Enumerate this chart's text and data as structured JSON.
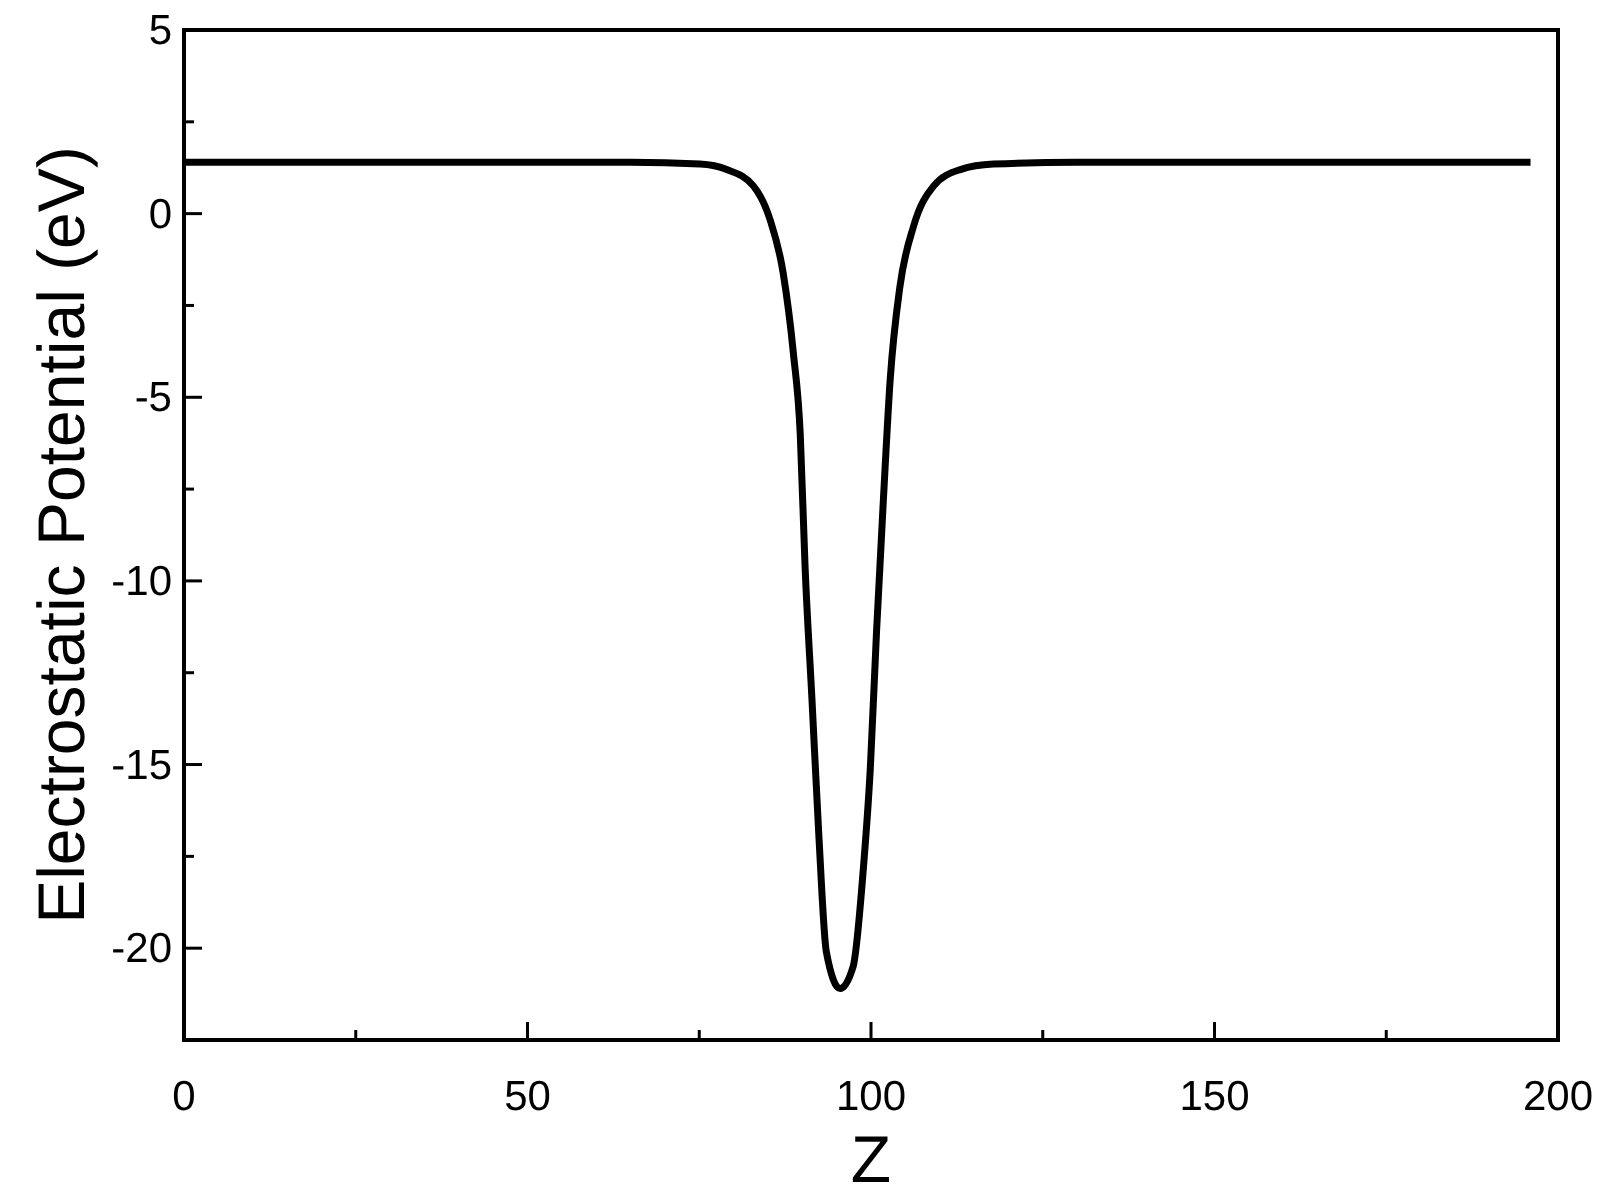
{
  "chart_data": {
    "type": "line",
    "xlabel": "Z",
    "ylabel": "Electrostatic Potential (eV)",
    "xlim": [
      0,
      200
    ],
    "ylim": [
      -22.5,
      5
    ],
    "xticks": [
      0,
      50,
      100,
      150,
      200
    ],
    "yticks": [
      -20,
      -15,
      -10,
      -5,
      0,
      5
    ],
    "grid": false,
    "marker": "none",
    "line_style": "solid",
    "series": [
      {
        "color": "#000000",
        "x": [
          0,
          40,
          65,
          75.1,
          79,
          82.9,
          85.3,
          87.2,
          88.7,
          89.7,
          90.4,
          91.4,
          92.4,
          93.5,
          95.5,
          97.4,
          98.9,
          99.9,
          100.8,
          101.8,
          102.8,
          104.2,
          106.2,
          109.1,
          113,
          117.8,
          130,
          160,
          196
        ],
        "values": [
          1.4,
          1.4,
          1.4,
          1.35,
          1.2,
          0.75,
          -0.16,
          -1.6,
          -3.8,
          -6,
          -9.6,
          -13.2,
          -16.9,
          -20.1,
          -21.1,
          -20.5,
          -17.8,
          -15.1,
          -11.4,
          -7.8,
          -4.5,
          -2,
          -0.34,
          0.75,
          1.2,
          1.35,
          1.4,
          1.4,
          1.4
        ]
      }
    ]
  }
}
